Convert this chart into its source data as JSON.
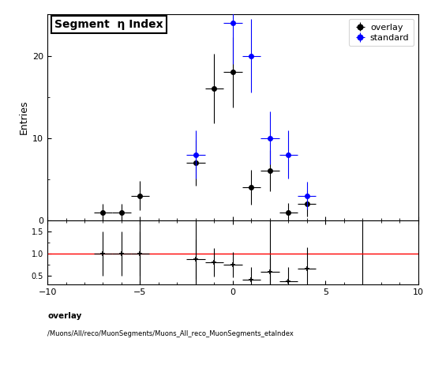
{
  "title": "Segment  η Index",
  "ylabel_main": "Entries",
  "xlim": [
    -10,
    10
  ],
  "ylim_main": [
    0,
    25
  ],
  "ylim_ratio": [
    0.3,
    1.75
  ],
  "yticks_main": [
    0,
    10,
    20
  ],
  "yticks_ratio": [
    0.5,
    1.0,
    1.5
  ],
  "xticks": [
    -10,
    -5,
    0,
    5,
    10
  ],
  "overlay_color": "black",
  "standard_color": "blue",
  "overlay_x": [
    -7.0,
    -6.0,
    -5.0,
    -2.0,
    -1.0,
    0.0,
    1.0,
    2.0,
    3.0,
    4.0
  ],
  "overlay_y": [
    1.0,
    1.0,
    3.0,
    7.0,
    16.0,
    18.0,
    4.0,
    6.0,
    1.0,
    2.0
  ],
  "overlay_xerr": [
    0.5,
    0.5,
    0.5,
    0.5,
    0.5,
    0.5,
    0.5,
    0.5,
    0.5,
    0.5
  ],
  "overlay_yerr": [
    1.0,
    1.0,
    1.8,
    2.8,
    4.2,
    4.3,
    2.1,
    2.5,
    1.1,
    1.5
  ],
  "standard_x": [
    -2.0,
    0.0,
    1.0,
    2.0,
    3.0,
    4.0
  ],
  "standard_y": [
    8.0,
    24.0,
    20.0,
    10.0,
    8.0,
    3.0
  ],
  "standard_xerr": [
    0.5,
    0.5,
    0.5,
    0.5,
    0.5,
    0.5
  ],
  "standard_yerr": [
    2.9,
    5.0,
    4.5,
    3.2,
    2.9,
    1.7
  ],
  "ratio_x": [
    -7.0,
    -6.0,
    -5.0,
    -2.0,
    -1.0,
    0.0,
    1.0,
    2.0,
    3.0,
    4.0
  ],
  "ratio_y": [
    1.0,
    1.0,
    1.0,
    0.88,
    0.8,
    0.75,
    0.42,
    0.6,
    0.38,
    0.67
  ],
  "ratio_yerr": [
    0.5,
    0.5,
    0.5,
    0.45,
    0.32,
    0.28,
    0.28,
    0.32,
    0.32,
    0.48
  ],
  "ratio_xerr": [
    0.5,
    0.5,
    0.5,
    0.5,
    0.5,
    0.5,
    0.5,
    0.5,
    0.5,
    0.5
  ],
  "ratio_vlines": [
    -5.0,
    -2.0,
    2.0,
    7.0
  ],
  "footer_line1": "overlay",
  "footer_line2": "/Muons/All/reco/MuonSegments/Muons_All_reco_MuonSegments_etaIndex",
  "legend_entries": [
    "overlay",
    "standard"
  ],
  "marker_size": 4
}
